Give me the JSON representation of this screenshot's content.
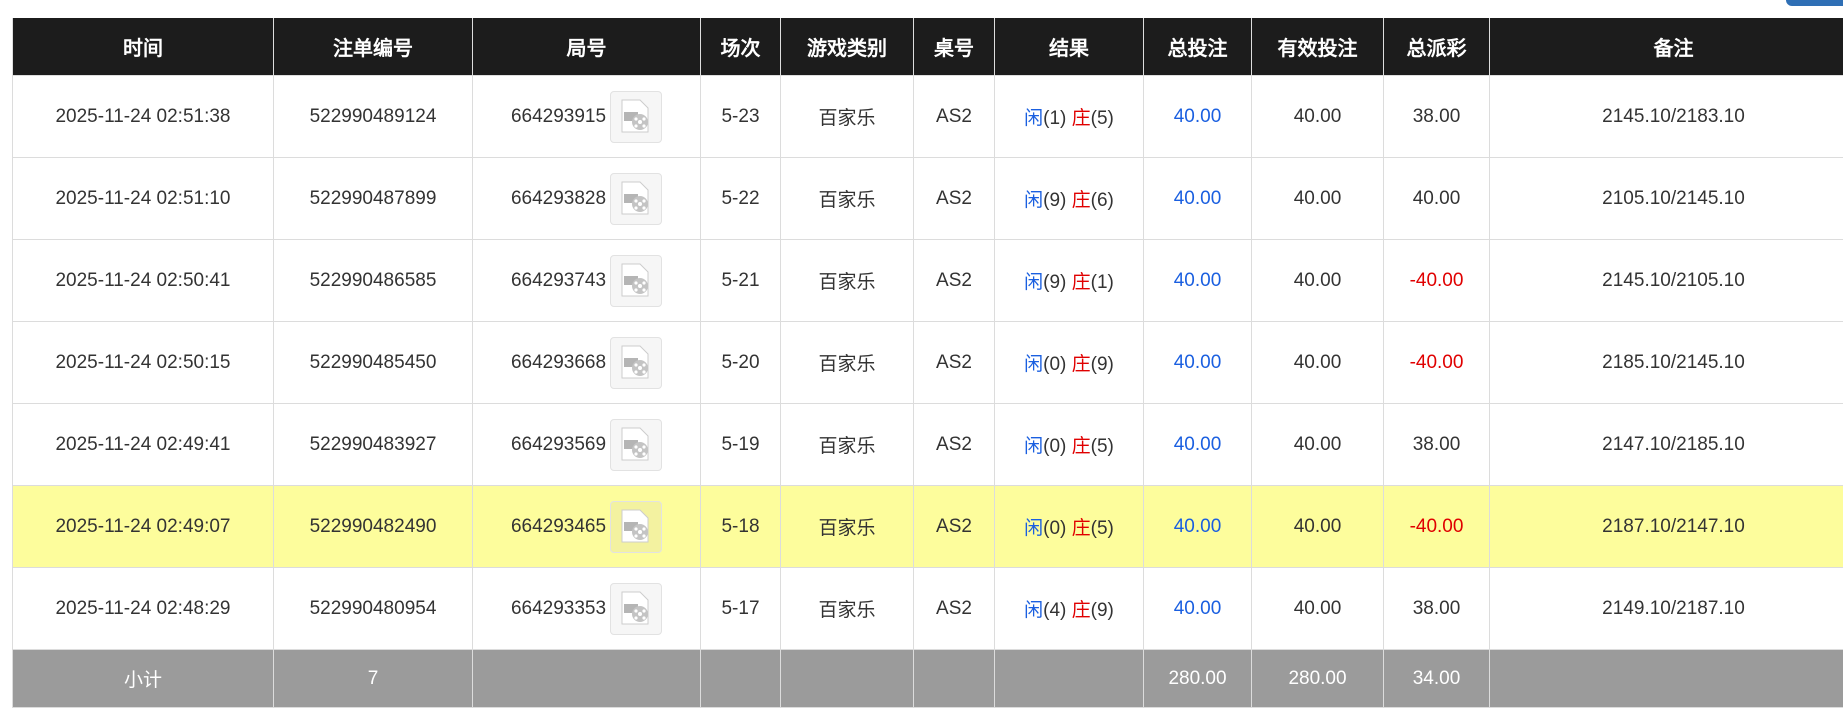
{
  "headers": [
    "时间",
    "注单编号",
    "局号",
    "场次",
    "游戏类别",
    "桌号",
    "结果",
    "总投注",
    "有效投注",
    "总派彩",
    "备注"
  ],
  "rows": [
    {
      "time": "2025-11-24 02:51:38",
      "bet_id": "522990489124",
      "round": "664293915",
      "shoe": "5-23",
      "game": "百家乐",
      "table": "AS2",
      "player_label": "闲",
      "player": "(1)",
      "banker_label": "庄",
      "banker": "(5)",
      "bet": "40.00",
      "valid": "40.00",
      "payout": "38.00",
      "payout_negative": false,
      "note": "2145.10/2183.10"
    },
    {
      "time": "2025-11-24 02:51:10",
      "bet_id": "522990487899",
      "round": "664293828",
      "shoe": "5-22",
      "game": "百家乐",
      "table": "AS2",
      "player_label": "闲",
      "player": "(9)",
      "banker_label": "庄",
      "banker": "(6)",
      "bet": "40.00",
      "valid": "40.00",
      "payout": "40.00",
      "payout_negative": false,
      "note": "2105.10/2145.10"
    },
    {
      "time": "2025-11-24 02:50:41",
      "bet_id": "522990486585",
      "round": "664293743",
      "shoe": "5-21",
      "game": "百家乐",
      "table": "AS2",
      "player_label": "闲",
      "player": "(9)",
      "banker_label": "庄",
      "banker": "(1)",
      "bet": "40.00",
      "valid": "40.00",
      "payout": "-40.00",
      "payout_negative": true,
      "note": "2145.10/2105.10"
    },
    {
      "time": "2025-11-24 02:50:15",
      "bet_id": "522990485450",
      "round": "664293668",
      "shoe": "5-20",
      "game": "百家乐",
      "table": "AS2",
      "player_label": "闲",
      "player": "(0)",
      "banker_label": "庄",
      "banker": "(9)",
      "bet": "40.00",
      "valid": "40.00",
      "payout": "-40.00",
      "payout_negative": true,
      "note": "2185.10/2145.10"
    },
    {
      "time": "2025-11-24 02:49:41",
      "bet_id": "522990483927",
      "round": "664293569",
      "shoe": "5-19",
      "game": "百家乐",
      "table": "AS2",
      "player_label": "闲",
      "player": "(0)",
      "banker_label": "庄",
      "banker": "(5)",
      "bet": "40.00",
      "valid": "40.00",
      "payout": "38.00",
      "payout_negative": false,
      "note": "2147.10/2185.10"
    },
    {
      "time": "2025-11-24 02:49:07",
      "bet_id": "522990482490",
      "round": "664293465",
      "shoe": "5-18",
      "game": "百家乐",
      "table": "AS2",
      "player_label": "闲",
      "player": "(0)",
      "banker_label": "庄",
      "banker": "(5)",
      "bet": "40.00",
      "valid": "40.00",
      "payout": "-40.00",
      "payout_negative": true,
      "note": "2187.10/2147.10",
      "highlighted": true
    },
    {
      "time": "2025-11-24 02:48:29",
      "bet_id": "522990480954",
      "round": "664293353",
      "shoe": "5-17",
      "game": "百家乐",
      "table": "AS2",
      "player_label": "闲",
      "player": "(4)",
      "banker_label": "庄",
      "banker": "(9)",
      "bet": "40.00",
      "valid": "40.00",
      "payout": "38.00",
      "payout_negative": false,
      "note": "2149.10/2187.10"
    }
  ],
  "subtotal": {
    "label": "小计",
    "count": "7",
    "bet": "280.00",
    "valid": "280.00",
    "payout": "34.00"
  },
  "colors": {
    "header_bg": "#1c1c1c",
    "player": "#1a5fe0",
    "banker": "#e00000",
    "negative": "#e00000",
    "highlight": "#fdfd9c",
    "subtotal_bg": "#9b9b9b"
  },
  "icons": {
    "round_video": "video-replay-icon"
  }
}
